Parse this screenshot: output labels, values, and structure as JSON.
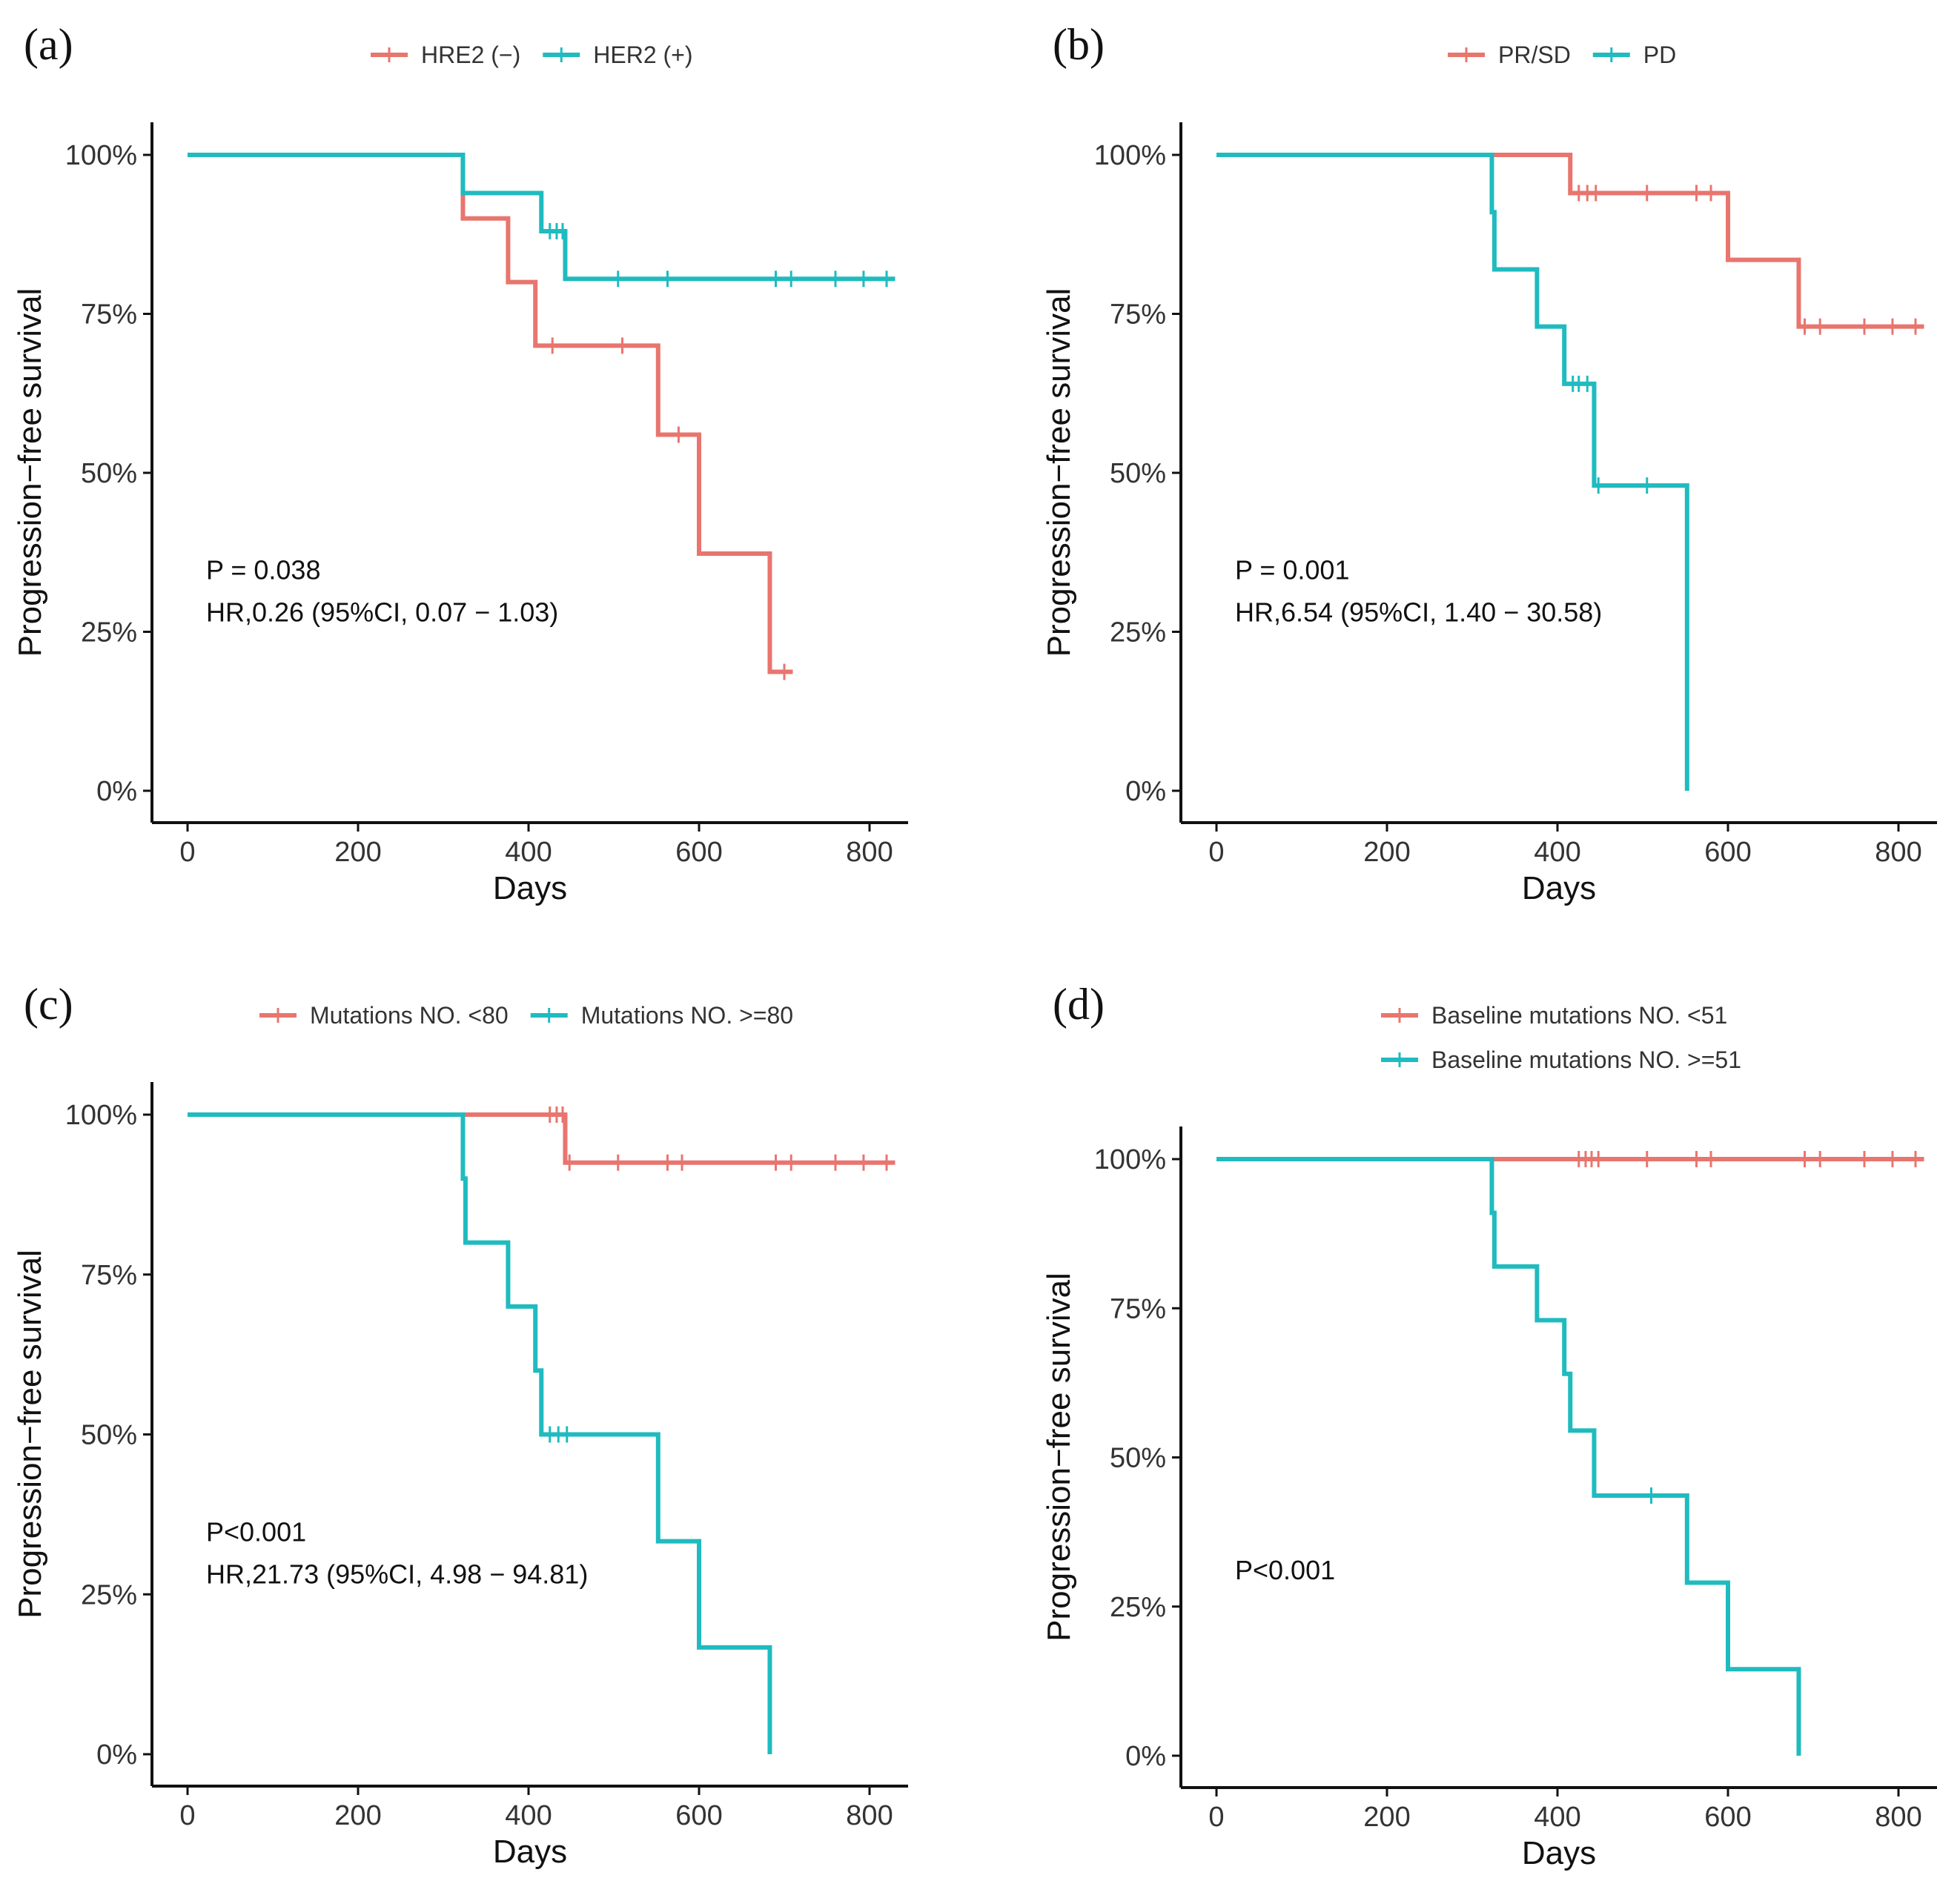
{
  "colors": {
    "group1": "#E8756E",
    "group2": "#1FBBBF"
  },
  "chart_data": [
    {
      "type": "line",
      "subtype": "kaplan-meier",
      "panel_label": "(a)",
      "xlabel": "Days",
      "ylabel": "Progression−free survival",
      "xlim": [
        0,
        840
      ],
      "ylim": [
        0,
        1
      ],
      "xticks": [
        "0",
        "200",
        "400",
        "600",
        "800"
      ],
      "yticks": [
        "0%",
        "25%",
        "50%",
        "75%",
        "100%"
      ],
      "legend_layout": "row",
      "annotations": [
        "P = 0.038",
        "HR,0.26 (95%CI, 0.07 − 1.03)"
      ],
      "series": [
        {
          "name": "HRE2 (−)",
          "color_key": "group1",
          "steps": [
            [
              0,
              1
            ],
            [
              323,
              0.9
            ],
            [
              376,
              0.8
            ],
            [
              408,
              0.7
            ],
            [
              552,
              0.56
            ],
            [
              600,
              0.373
            ],
            [
              683,
              0.187
            ]
          ],
          "end": 710,
          "censors": [
            [
              428,
              0.7
            ],
            [
              510,
              0.7
            ],
            [
              576,
              0.56
            ],
            [
              700,
              0.187
            ]
          ]
        },
        {
          "name": "HER2 (+)",
          "color_key": "group2",
          "steps": [
            [
              0,
              1
            ],
            [
              323,
              0.94
            ],
            [
              415,
              0.88
            ],
            [
              443,
              0.805
            ]
          ],
          "end": 830,
          "censors": [
            [
              425,
              0.88
            ],
            [
              433,
              0.88
            ],
            [
              440,
              0.88
            ],
            [
              505,
              0.805
            ],
            [
              563,
              0.805
            ],
            [
              690,
              0.805
            ],
            [
              708,
              0.805
            ],
            [
              760,
              0.805
            ],
            [
              793,
              0.805
            ],
            [
              820,
              0.805
            ]
          ]
        }
      ]
    },
    {
      "type": "line",
      "subtype": "kaplan-meier",
      "panel_label": "(b)",
      "xlabel": "Days",
      "ylabel": "Progression−free survival",
      "xlim": [
        0,
        840
      ],
      "ylim": [
        0,
        1
      ],
      "xticks": [
        "0",
        "200",
        "400",
        "600",
        "800"
      ],
      "yticks": [
        "0%",
        "25%",
        "50%",
        "75%",
        "100%"
      ],
      "legend_layout": "row",
      "annotations": [
        "P = 0.001",
        "HR,6.54 (95%CI, 1.40 − 30.58)"
      ],
      "series": [
        {
          "name": "PR/SD",
          "color_key": "group1",
          "steps": [
            [
              0,
              1
            ],
            [
              415,
              0.94
            ],
            [
              600,
              0.835
            ],
            [
              683,
              0.73
            ]
          ],
          "end": 830,
          "censors": [
            [
              425,
              0.94
            ],
            [
              435,
              0.94
            ],
            [
              445,
              0.94
            ],
            [
              505,
              0.94
            ],
            [
              563,
              0.94
            ],
            [
              580,
              0.94
            ],
            [
              690,
              0.73
            ],
            [
              708,
              0.73
            ],
            [
              760,
              0.73
            ],
            [
              793,
              0.73
            ],
            [
              820,
              0.73
            ]
          ]
        },
        {
          "name": "PD",
          "color_key": "group2",
          "steps": [
            [
              0,
              1
            ],
            [
              323,
              0.91
            ],
            [
              326,
              0.82
            ],
            [
              376,
              0.73
            ],
            [
              408,
              0.64
            ],
            [
              443,
              0.48
            ],
            [
              552,
              0
            ]
          ],
          "end": 552,
          "censors": [
            [
              418,
              0.64
            ],
            [
              425,
              0.64
            ],
            [
              435,
              0.64
            ],
            [
              448,
              0.48
            ],
            [
              505,
              0.48
            ]
          ]
        }
      ]
    },
    {
      "type": "line",
      "subtype": "kaplan-meier",
      "panel_label": "(c)",
      "xlabel": "Days",
      "ylabel": "Progression−free survival",
      "xlim": [
        0,
        840
      ],
      "ylim": [
        0,
        1
      ],
      "xticks": [
        "0",
        "200",
        "400",
        "600",
        "800"
      ],
      "yticks": [
        "0%",
        "25%",
        "50%",
        "75%",
        "100%"
      ],
      "legend_layout": "row",
      "annotations": [
        "P<0.001",
        "HR,21.73 (95%CI, 4.98 − 94.81)"
      ],
      "series": [
        {
          "name": "Mutations NO. <80",
          "color_key": "group1",
          "steps": [
            [
              0,
              1
            ],
            [
              443,
              0.925
            ]
          ],
          "end": 830,
          "censors": [
            [
              425,
              1
            ],
            [
              433,
              1
            ],
            [
              440,
              1
            ],
            [
              448,
              0.925
            ],
            [
              505,
              0.925
            ],
            [
              563,
              0.925
            ],
            [
              580,
              0.925
            ],
            [
              690,
              0.925
            ],
            [
              708,
              0.925
            ],
            [
              760,
              0.925
            ],
            [
              793,
              0.925
            ],
            [
              820,
              0.925
            ]
          ]
        },
        {
          "name": "Mutations NO. >=80",
          "color_key": "group2",
          "steps": [
            [
              0,
              1
            ],
            [
              323,
              0.9
            ],
            [
              326,
              0.8
            ],
            [
              376,
              0.7
            ],
            [
              408,
              0.6
            ],
            [
              415,
              0.5
            ],
            [
              552,
              0.333
            ],
            [
              600,
              0.167
            ],
            [
              683,
              0
            ]
          ],
          "end": 683,
          "censors": [
            [
              425,
              0.5
            ],
            [
              435,
              0.5
            ],
            [
              445,
              0.5
            ]
          ]
        }
      ]
    },
    {
      "type": "line",
      "subtype": "kaplan-meier",
      "panel_label": "(d)",
      "xlabel": "Days",
      "ylabel": "Progression−free survival",
      "xlim": [
        0,
        840
      ],
      "ylim": [
        0,
        1
      ],
      "xticks": [
        "0",
        "200",
        "400",
        "600",
        "800"
      ],
      "yticks": [
        "0%",
        "25%",
        "50%",
        "75%",
        "100%"
      ],
      "legend_layout": "column",
      "annotations": [
        "P<0.001"
      ],
      "series": [
        {
          "name": "Baseline mutations NO. <51",
          "color_key": "group1",
          "steps": [
            [
              0,
              1
            ]
          ],
          "end": 830,
          "censors": [
            [
              425,
              1
            ],
            [
              433,
              1
            ],
            [
              440,
              1
            ],
            [
              448,
              1
            ],
            [
              505,
              1
            ],
            [
              563,
              1
            ],
            [
              580,
              1
            ],
            [
              690,
              1
            ],
            [
              708,
              1
            ],
            [
              760,
              1
            ],
            [
              793,
              1
            ],
            [
              820,
              1
            ]
          ]
        },
        {
          "name": "Baseline mutations NO. >=51",
          "color_key": "group2",
          "steps": [
            [
              0,
              1
            ],
            [
              323,
              0.91
            ],
            [
              326,
              0.82
            ],
            [
              376,
              0.73
            ],
            [
              408,
              0.64
            ],
            [
              415,
              0.545
            ],
            [
              443,
              0.436
            ],
            [
              552,
              0.29
            ],
            [
              600,
              0.145
            ],
            [
              683,
              0
            ]
          ],
          "end": 683,
          "censors": [
            [
              510,
              0.436
            ]
          ]
        }
      ]
    }
  ]
}
